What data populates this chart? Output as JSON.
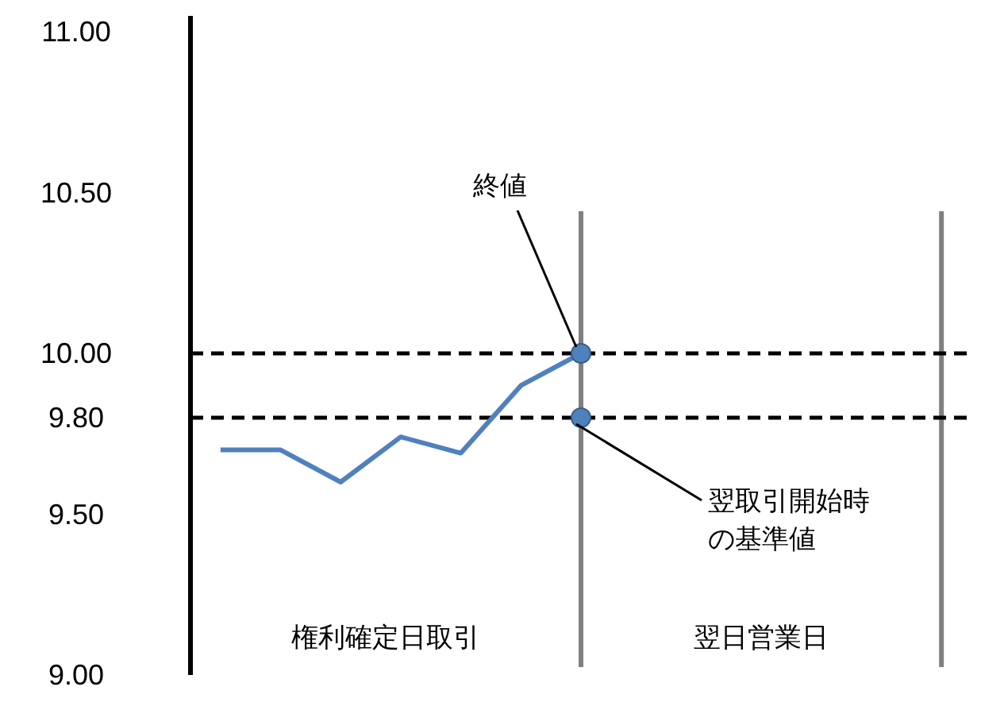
{
  "chart_data": {
    "type": "line",
    "categories": [
      null,
      null,
      null,
      null,
      null,
      null,
      null,
      null,
      null,
      null,
      null,
      null,
      null
    ],
    "series": [
      {
        "color": "#4f81bd",
        "values": [
          9.7,
          9.7,
          9.6,
          9.74,
          9.69,
          9.9,
          10.0,
          null,
          null,
          null,
          null,
          null,
          null
        ]
      }
    ],
    "ylim": [
      9,
      11
    ],
    "yticks": [
      {
        "value": 9,
        "label": "9.00"
      },
      {
        "value": 9.5,
        "label": "9.50"
      },
      {
        "value": 9.8,
        "label": "9.80"
      },
      {
        "value": 10,
        "label": "10.00"
      },
      {
        "value": 10.5,
        "label": "10.50"
      },
      {
        "value": 11,
        "label": "11.00"
      }
    ],
    "tick_labels": "y",
    "ref_lines": [
      {
        "axis": "y",
        "value": 10,
        "color": "#000000",
        "line_style": "dashed"
      },
      {
        "axis": "y",
        "value": 9.8,
        "color": "#000000",
        "line_style": "dashed"
      }
    ],
    "annotations": [
      "終値",
      "翌取引開始時の基準値",
      "権利確定日取引",
      "翌日営業日"
    ]
  }
}
